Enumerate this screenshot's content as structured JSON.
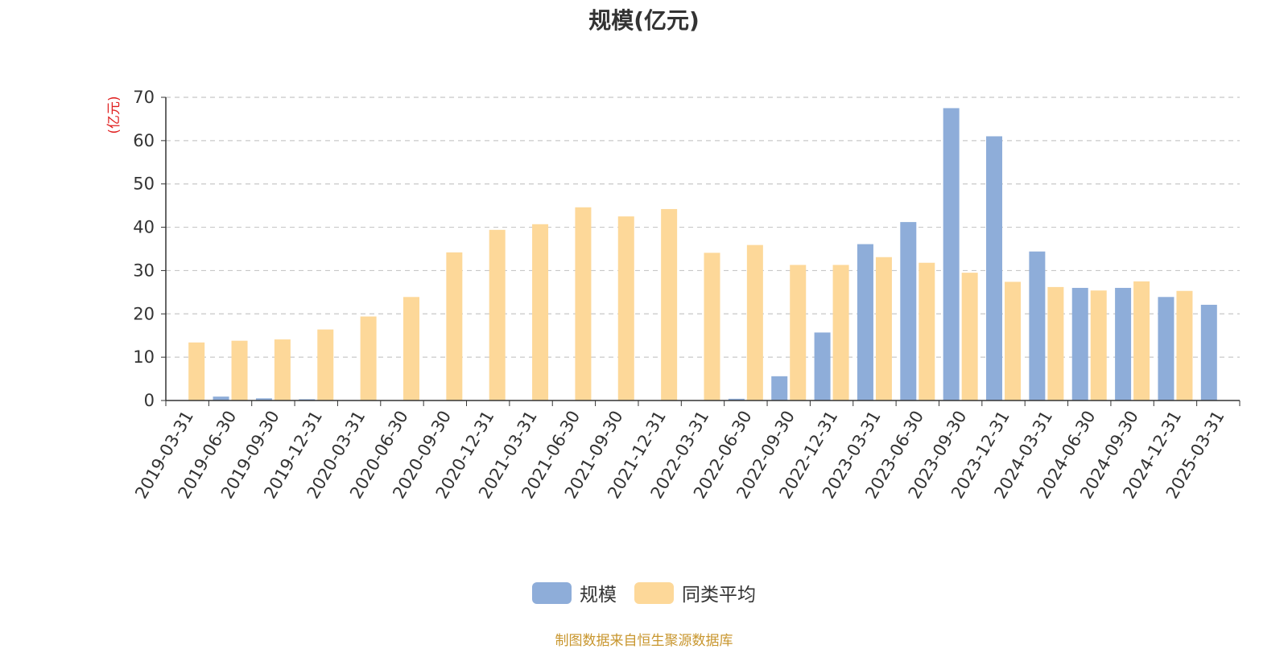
{
  "chart_data": {
    "type": "bar",
    "title": "规模(亿元)",
    "ylabel": "(亿元)",
    "ylim": [
      0,
      70
    ],
    "yticks": [
      0,
      10,
      20,
      30,
      40,
      50,
      60,
      70
    ],
    "grid": true,
    "legend_position": "bottom",
    "categories": [
      "2019-03-31",
      "2019-06-30",
      "2019-09-30",
      "2019-12-31",
      "2020-03-31",
      "2020-06-30",
      "2020-09-30",
      "2020-12-31",
      "2021-03-31",
      "2021-06-30",
      "2021-09-30",
      "2021-12-31",
      "2022-03-31",
      "2022-06-30",
      "2022-09-30",
      "2022-12-31",
      "2023-03-31",
      "2023-06-30",
      "2023-09-30",
      "2023-12-31",
      "2024-03-31",
      "2024-06-30",
      "2024-09-30",
      "2024-12-31",
      "2025-03-31"
    ],
    "series": [
      {
        "name": "规模",
        "color": "#8eadd9",
        "values": [
          0.1,
          0.9,
          0.5,
          0.3,
          0.1,
          0,
          0,
          0,
          0,
          0,
          0,
          0,
          0,
          0.4,
          5.6,
          15.7,
          36.1,
          41.2,
          67.5,
          61.0,
          34.4,
          26.0,
          26.0,
          23.9,
          22.1
        ]
      },
      {
        "name": "同类平均",
        "color": "#fdd899",
        "values": [
          13.4,
          13.8,
          14.1,
          16.4,
          19.4,
          23.9,
          34.2,
          39.4,
          40.7,
          44.6,
          42.5,
          44.2,
          34.1,
          35.9,
          31.3,
          31.3,
          33.1,
          31.8,
          29.5,
          27.4,
          26.2,
          25.4,
          27.5,
          25.3,
          null
        ]
      }
    ]
  },
  "source_note": "制图数据来自恒生聚源数据库"
}
